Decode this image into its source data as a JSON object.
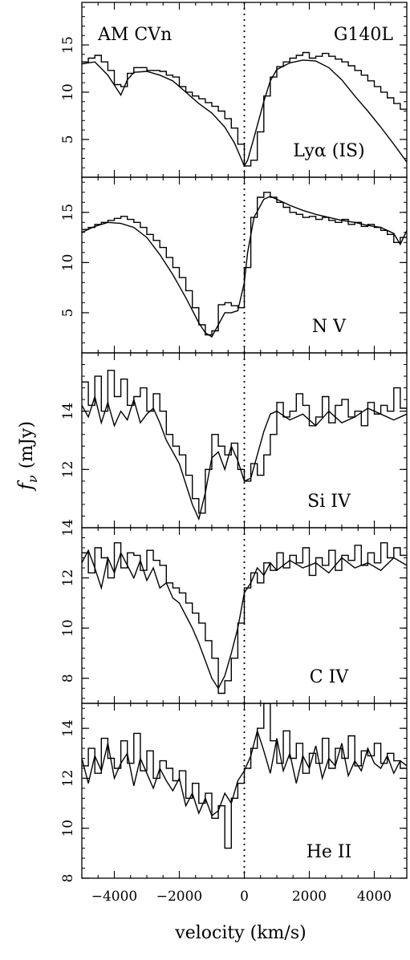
{
  "figure": {
    "xlabel": "velocity (km/s)",
    "ylabel_symbol": "f",
    "ylabel_subscript": "ν",
    "ylabel_unit": "(mJy)",
    "top_left_label": "AM CVn",
    "top_right_label": "G140L",
    "xlim": [
      -5000,
      5000
    ],
    "xticks": [
      -4000,
      -2000,
      0,
      2000,
      4000
    ],
    "xtick_labels": [
      "−4000",
      "−2000",
      "0",
      "2000",
      "4000"
    ]
  },
  "chart_data": [
    {
      "type": "line",
      "panel_label": "Lyα (IS)",
      "ylim": [
        1,
        19.5
      ],
      "yticks": [
        5,
        10,
        15
      ],
      "ytick_labels": [
        "5",
        "10",
        "15"
      ],
      "series": [
        {
          "style": "histogram",
          "x": [
            -5000,
            -4800,
            -4600,
            -4400,
            -4200,
            -4000,
            -3800,
            -3600,
            -3400,
            -3200,
            -3000,
            -2800,
            -2600,
            -2400,
            -2200,
            -2000,
            -1800,
            -1600,
            -1400,
            -1200,
            -1000,
            -800,
            -600,
            -400,
            -200,
            0,
            200,
            400,
            600,
            800,
            1000,
            1200,
            1400,
            1600,
            1800,
            2000,
            2200,
            2400,
            2600,
            2800,
            3000,
            3200,
            3400,
            3600,
            3800,
            4000,
            4200,
            4400,
            4600,
            4800
          ],
          "y": [
            13.2,
            13.6,
            13.9,
            13.2,
            12.3,
            10.8,
            10.6,
            12.0,
            12.6,
            12.6,
            12.3,
            12.3,
            12.2,
            11.8,
            11.6,
            10.6,
            10.0,
            9.6,
            9.3,
            8.9,
            8.5,
            8.0,
            7.2,
            6.2,
            4.5,
            2.2,
            2.8,
            5.8,
            9.6,
            11.6,
            12.7,
            13.2,
            13.6,
            13.9,
            14.2,
            13.6,
            13.8,
            14.1,
            13.8,
            13.5,
            13.2,
            12.8,
            12.3,
            11.8,
            11.2,
            10.6,
            10.0,
            9.4,
            8.8,
            8.2
          ]
        },
        {
          "style": "model",
          "x": [
            -5000,
            -4600,
            -4200,
            -3800,
            -3600,
            -3400,
            -3000,
            -2600,
            -2200,
            -1800,
            -1400,
            -1000,
            -600,
            -300,
            -100,
            0,
            100,
            300,
            600,
            800,
            1000,
            1400,
            1800,
            2200,
            2600,
            3000,
            3400,
            3800,
            4200,
            4600,
            5000
          ],
          "y": [
            13.0,
            13.2,
            11.8,
            9.7,
            11.3,
            12.1,
            12.2,
            11.8,
            11.2,
            10.0,
            8.8,
            7.8,
            6.3,
            4.6,
            3.0,
            2.2,
            2.8,
            5.2,
            9.0,
            11.2,
            12.4,
            13.1,
            13.4,
            13.3,
            12.6,
            11.3,
            9.6,
            8.0,
            6.3,
            4.5,
            2.6
          ]
        }
      ]
    },
    {
      "type": "line",
      "panel_label": "N V",
      "ylim": [
        1,
        18.5
      ],
      "yticks": [
        5,
        10,
        15
      ],
      "ytick_labels": [
        "5",
        "10",
        "15"
      ],
      "series": [
        {
          "style": "histogram",
          "x": [
            -5000,
            -4800,
            -4600,
            -4400,
            -4200,
            -4000,
            -3800,
            -3600,
            -3400,
            -3200,
            -3000,
            -2800,
            -2600,
            -2400,
            -2200,
            -2000,
            -1800,
            -1600,
            -1400,
            -1200,
            -1000,
            -800,
            -600,
            -400,
            -200,
            0,
            200,
            400,
            600,
            800,
            1000,
            1200,
            1400,
            1600,
            1800,
            2000,
            2200,
            2400,
            2600,
            2800,
            3000,
            3200,
            3400,
            3600,
            3800,
            4000,
            4200,
            4400,
            4600,
            4800
          ],
          "y": [
            13.3,
            13.5,
            13.8,
            14.0,
            14.2,
            14.4,
            14.6,
            14.3,
            14.0,
            13.5,
            12.8,
            12.2,
            11.5,
            10.5,
            9.5,
            8.5,
            7.2,
            5.5,
            3.8,
            2.8,
            3.2,
            5.8,
            6.0,
            5.7,
            5.5,
            9.5,
            14.5,
            16.5,
            17.0,
            16.5,
            16.0,
            15.5,
            15.0,
            14.8,
            14.5,
            14.6,
            14.3,
            14.5,
            14.2,
            14.0,
            14.3,
            13.8,
            14.0,
            13.6,
            13.8,
            13.5,
            13.2,
            12.8,
            12.0,
            12.5
          ]
        },
        {
          "style": "model",
          "x": [
            -5000,
            -4600,
            -4200,
            -3800,
            -3400,
            -3000,
            -2600,
            -2200,
            -1800,
            -1400,
            -1200,
            -1000,
            -800,
            -600,
            -400,
            -200,
            0,
            100,
            300,
            600,
            800,
            1000,
            1400,
            1800,
            2200,
            2600,
            3000,
            3400,
            3800,
            4200,
            4600,
            4800,
            5000
          ],
          "y": [
            13.0,
            13.6,
            14.0,
            13.9,
            13.5,
            12.5,
            10.8,
            8.8,
            6.5,
            4.0,
            3.0,
            2.6,
            3.8,
            5.0,
            5.0,
            5.2,
            8.0,
            11.0,
            14.5,
            16.3,
            16.6,
            16.3,
            15.7,
            15.2,
            14.8,
            14.5,
            14.2,
            14.0,
            13.7,
            13.5,
            12.9,
            11.8,
            13.2
          ]
        }
      ]
    },
    {
      "type": "line",
      "panel_label": "Si IV",
      "ylim": [
        10,
        16
      ],
      "yticks": [
        12,
        14
      ],
      "ytick_labels": [
        "12",
        "14"
      ],
      "bottom_tick_label": "14",
      "series": [
        {
          "style": "histogram",
          "x": [
            -5000,
            -4800,
            -4600,
            -4400,
            -4200,
            -4000,
            -3800,
            -3600,
            -3400,
            -3200,
            -3000,
            -2800,
            -2600,
            -2400,
            -2200,
            -2000,
            -1800,
            -1600,
            -1400,
            -1200,
            -1000,
            -800,
            -600,
            -400,
            -200,
            0,
            200,
            400,
            600,
            800,
            1000,
            1200,
            1400,
            1600,
            1800,
            2000,
            2200,
            2400,
            2600,
            2800,
            3000,
            3200,
            3400,
            3600,
            3800,
            4000,
            4200,
            4400,
            4600,
            4800
          ],
          "y": [
            15.0,
            14.2,
            15.2,
            14.0,
            15.4,
            14.5,
            15.1,
            14.2,
            14.5,
            14.8,
            14.0,
            14.6,
            14.0,
            13.2,
            12.8,
            12.5,
            11.8,
            11.0,
            10.5,
            12.0,
            13.2,
            12.8,
            12.5,
            12.9,
            12.0,
            11.6,
            12.2,
            11.8,
            12.5,
            13.2,
            14.3,
            13.8,
            14.0,
            14.6,
            14.2,
            13.5,
            13.8,
            14.5,
            13.6,
            14.2,
            14.4,
            13.8,
            14.0,
            13.5,
            14.3,
            13.9,
            14.2,
            14.0,
            14.8,
            14.1
          ]
        },
        {
          "style": "model",
          "x": [
            -5000,
            -4800,
            -4600,
            -4400,
            -4200,
            -4000,
            -3800,
            -3600,
            -3400,
            -3200,
            -3000,
            -2800,
            -2600,
            -2400,
            -2200,
            -2000,
            -1800,
            -1600,
            -1400,
            -1200,
            -1000,
            -800,
            -600,
            -400,
            -200,
            0,
            200,
            400,
            600,
            800,
            1000,
            1400,
            1800,
            2200,
            2600,
            3000,
            3400,
            3800,
            4200,
            4600,
            5000
          ],
          "y": [
            14.2,
            13.8,
            14.5,
            13.6,
            14.3,
            13.5,
            14.0,
            13.7,
            14.4,
            13.6,
            13.9,
            14.1,
            13.6,
            13.0,
            12.6,
            12.2,
            11.5,
            10.8,
            10.3,
            11.2,
            12.4,
            12.6,
            12.0,
            12.8,
            12.3,
            11.6,
            11.7,
            12.5,
            13.3,
            13.9,
            14.0,
            13.7,
            13.9,
            13.5,
            14.0,
            13.6,
            13.8,
            14.1,
            13.9,
            13.7,
            13.9
          ]
        }
      ]
    },
    {
      "type": "line",
      "panel_label": "C IV",
      "ylim": [
        7,
        14
      ],
      "yticks": [
        8,
        10,
        12
      ],
      "ytick_labels": [
        "8",
        "10",
        "12"
      ],
      "series": [
        {
          "style": "histogram",
          "x": [
            -5000,
            -4800,
            -4600,
            -4400,
            -4200,
            -4000,
            -3800,
            -3600,
            -3400,
            -3200,
            -3000,
            -2800,
            -2600,
            -2400,
            -2200,
            -2000,
            -1800,
            -1600,
            -1400,
            -1200,
            -1000,
            -800,
            -600,
            -400,
            -200,
            0,
            200,
            400,
            600,
            800,
            1000,
            1200,
            1400,
            1600,
            1800,
            2000,
            2200,
            2400,
            2600,
            2800,
            3000,
            3200,
            3400,
            3600,
            3800,
            4000,
            4200,
            4400,
            4600,
            4800
          ],
          "y": [
            13.0,
            12.2,
            13.2,
            12.8,
            12.0,
            13.4,
            12.4,
            13.0,
            12.9,
            12.3,
            13.1,
            12.7,
            12.5,
            11.8,
            11.6,
            11.4,
            11.0,
            10.6,
            10.2,
            9.5,
            8.8,
            7.4,
            7.9,
            8.8,
            10.2,
            11.6,
            12.2,
            11.8,
            12.6,
            12.3,
            13.0,
            12.4,
            12.9,
            12.6,
            13.2,
            12.1,
            12.8,
            12.5,
            13.1,
            12.3,
            12.9,
            12.7,
            13.3,
            12.5,
            13.0,
            12.6,
            13.4,
            12.8,
            13.2,
            12.9
          ]
        },
        {
          "style": "model",
          "x": [
            -5000,
            -4800,
            -4600,
            -4400,
            -4200,
            -4000,
            -3800,
            -3600,
            -3400,
            -3200,
            -3000,
            -2800,
            -2600,
            -2400,
            -2200,
            -2000,
            -1800,
            -1600,
            -1400,
            -1200,
            -1000,
            -800,
            -600,
            -400,
            -200,
            0,
            200,
            400,
            600,
            800,
            1000,
            1400,
            1800,
            2200,
            2600,
            3000,
            3400,
            3800,
            4200,
            4600,
            5000
          ],
          "y": [
            12.6,
            13.1,
            12.4,
            11.6,
            12.8,
            12.2,
            13.0,
            12.5,
            12.0,
            12.7,
            11.9,
            12.4,
            11.6,
            11.8,
            11.2,
            11.0,
            10.5,
            10.0,
            9.4,
            8.7,
            8.0,
            7.6,
            8.1,
            9.0,
            10.0,
            11.4,
            11.8,
            12.4,
            12.1,
            12.6,
            12.3,
            12.7,
            12.4,
            12.6,
            12.2,
            12.8,
            12.4,
            12.6,
            12.3,
            12.8,
            12.5
          ]
        }
      ]
    },
    {
      "type": "line",
      "panel_label": "He II",
      "ylim": [
        8,
        15
      ],
      "yticks": [
        8,
        10,
        12,
        14
      ],
      "ytick_labels": [
        "8",
        "10",
        "12",
        "14"
      ],
      "series": [
        {
          "style": "histogram",
          "x": [
            -5000,
            -4800,
            -4600,
            -4400,
            -4200,
            -4000,
            -3800,
            -3600,
            -3400,
            -3200,
            -3000,
            -2800,
            -2600,
            -2400,
            -2200,
            -2000,
            -1800,
            -1600,
            -1400,
            -1200,
            -1000,
            -800,
            -600,
            -400,
            -200,
            0,
            200,
            400,
            600,
            800,
            1000,
            1200,
            1400,
            1600,
            1800,
            2000,
            2200,
            2400,
            2600,
            2800,
            3000,
            3200,
            3400,
            3600,
            3800,
            4000,
            4200,
            4400,
            4600,
            4800
          ],
          "y": [
            12.5,
            13.2,
            12.2,
            13.6,
            12.8,
            12.4,
            13.5,
            12.6,
            13.8,
            12.3,
            13.1,
            12.0,
            12.7,
            12.4,
            11.9,
            12.3,
            11.2,
            11.8,
            11.0,
            11.4,
            10.4,
            10.9,
            9.2,
            11.2,
            11.8,
            12.4,
            13.2,
            14.0,
            15.0,
            13.5,
            12.6,
            13.9,
            12.8,
            13.4,
            12.2,
            13.0,
            12.6,
            13.6,
            12.4,
            13.2,
            12.8,
            13.7,
            12.5,
            13.1,
            12.9,
            13.4,
            12.6,
            13.0,
            12.7,
            12.4
          ]
        },
        {
          "style": "model",
          "x": [
            -5000,
            -4800,
            -4600,
            -4400,
            -4200,
            -4000,
            -3800,
            -3600,
            -3400,
            -3200,
            -3000,
            -2800,
            -2600,
            -2400,
            -2200,
            -2000,
            -1800,
            -1600,
            -1400,
            -1200,
            -1000,
            -800,
            -600,
            -400,
            -200,
            0,
            200,
            400,
            600,
            800,
            1000,
            1200,
            1400,
            1600,
            1800,
            2000,
            2200,
            2400,
            2600,
            2800,
            3000,
            3200,
            3400,
            3600,
            3800,
            4000,
            4200,
            4400,
            4600,
            4800,
            5000
          ],
          "y": [
            12.8,
            11.8,
            12.9,
            12.3,
            13.4,
            12.0,
            12.6,
            13.0,
            11.7,
            12.8,
            12.2,
            11.6,
            12.4,
            11.9,
            11.5,
            12.0,
            10.9,
            11.4,
            10.6,
            11.2,
            10.5,
            10.7,
            11.4,
            11.0,
            11.9,
            12.3,
            12.9,
            13.9,
            13.1,
            12.2,
            13.6,
            12.3,
            13.0,
            11.8,
            12.9,
            12.4,
            13.3,
            12.0,
            12.8,
            12.5,
            13.4,
            12.1,
            12.7,
            12.3,
            13.2,
            12.6,
            12.4,
            12.9,
            12.2,
            12.7,
            12.5
          ]
        }
      ]
    }
  ]
}
